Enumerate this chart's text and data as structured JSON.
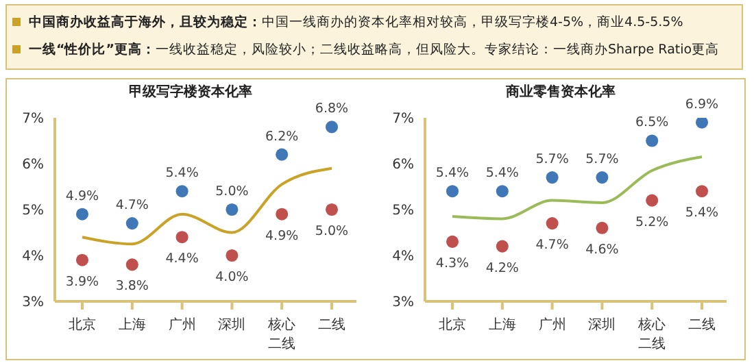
{
  "chart_data": [
    {
      "type": "other",
      "annotations": [
        "中国商办收益高于海外，且较为稳定：中国一线商办的资本化率相对较高，甲级写字楼4-5%，商业4.5-5.5%",
        "一线“性价比”更高：一线收益稳定，风险较小；二线收益略高，但风险大。专家结论：一线商办Sharpe Ratio更高"
      ]
    },
    {
      "type": "scatter",
      "title": "甲级写字楼资本化率",
      "categories": [
        "北京",
        "上海",
        "广州",
        "深圳",
        "核心二线",
        "二线"
      ],
      "ylim": [
        3,
        7
      ],
      "yticks": [
        {
          "value": 3,
          "label": "3%"
        },
        {
          "value": 4,
          "label": "4%"
        },
        {
          "value": 5,
          "label": "5%"
        },
        {
          "value": 6,
          "label": "6%"
        },
        {
          "value": 7,
          "label": "7%"
        }
      ],
      "grid": false,
      "series": [
        {
          "type": "scatter",
          "marker": "circle",
          "color": "#3f77b7",
          "values": [
            4.9,
            4.7,
            5.4,
            5.0,
            6.2,
            6.8
          ],
          "value_labels": [
            "4.9%",
            "4.7%",
            "5.4%",
            "5.0%",
            "6.2%",
            "6.8%"
          ]
        },
        {
          "type": "scatter",
          "marker": "circle",
          "color": "#c0504d",
          "values": [
            3.9,
            3.8,
            4.4,
            4.0,
            4.9,
            5.0
          ],
          "value_labels": [
            "3.9%",
            "3.8%",
            "4.4%",
            "4.0%",
            "4.9%",
            "5.0%"
          ]
        },
        {
          "type": "line",
          "marker": "none",
          "color": "#c9a227",
          "values": [
            4.4,
            4.25,
            4.9,
            4.5,
            5.55,
            5.9
          ]
        }
      ]
    },
    {
      "type": "scatter",
      "title": "商业零售资本化率",
      "categories": [
        "北京",
        "上海",
        "广州",
        "深圳",
        "核心二线",
        "二线"
      ],
      "ylim": [
        3,
        7
      ],
      "yticks": [
        {
          "value": 3,
          "label": "3%"
        },
        {
          "value": 4,
          "label": "4%"
        },
        {
          "value": 5,
          "label": "5%"
        },
        {
          "value": 6,
          "label": "6%"
        },
        {
          "value": 7,
          "label": "7%"
        }
      ],
      "grid": false,
      "series": [
        {
          "type": "scatter",
          "marker": "circle",
          "color": "#3f77b7",
          "values": [
            5.4,
            5.4,
            5.7,
            5.7,
            6.5,
            6.9
          ],
          "value_labels": [
            "5.4%",
            "5.4%",
            "5.7%",
            "5.7%",
            "6.5%",
            "6.9%"
          ]
        },
        {
          "type": "scatter",
          "marker": "circle",
          "color": "#c0504d",
          "values": [
            4.3,
            4.2,
            4.7,
            4.6,
            5.2,
            5.4
          ],
          "value_labels": [
            "4.3%",
            "4.2%",
            "4.7%",
            "4.6%",
            "5.2%",
            "5.4%"
          ]
        },
        {
          "type": "line",
          "marker": "none",
          "color": "#9bbb59",
          "values": [
            4.85,
            4.8,
            5.2,
            5.15,
            5.85,
            6.15
          ]
        }
      ]
    }
  ]
}
